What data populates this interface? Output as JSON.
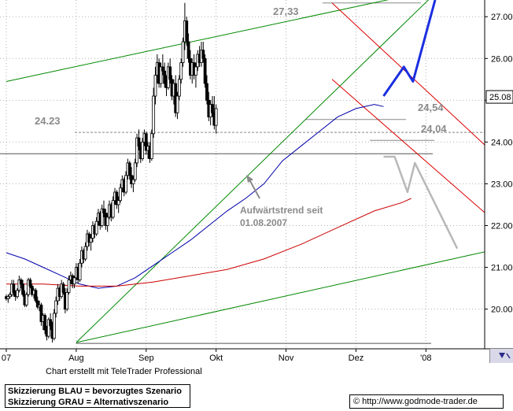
{
  "chart_data": {
    "type": "candlestick",
    "title": "",
    "xlabel": "",
    "ylabel": "",
    "ylim": [
      19.05,
      27.4
    ],
    "yticks": [
      "20.00",
      "21.00",
      "22.00",
      "23.00",
      "24.00",
      "25.00",
      "26.00",
      "27.00"
    ],
    "x_labels": [
      {
        "label": "07",
        "index": 0
      },
      {
        "label": "Aug",
        "index": 38
      },
      {
        "label": "Sep",
        "index": 76
      },
      {
        "label": "Okt",
        "index": 114
      },
      {
        "label": "Nov",
        "index": 152
      },
      {
        "label": "Dez",
        "index": 190
      },
      {
        "label": "'08",
        "index": 228
      }
    ],
    "current_price_label": "25.08",
    "current_price": 25.08,
    "levels": [
      {
        "label": "27,33",
        "value": 27.33
      },
      {
        "label": "24,54",
        "value": 24.54
      },
      {
        "label": "24.23",
        "value": 24.23
      },
      {
        "label": "24,04",
        "value": 24.04
      }
    ],
    "annotation": {
      "line1": "Aufwärtstrend seit",
      "line2": "01.08.2007"
    },
    "moving_averages": [
      {
        "color": "#0000aa",
        "points": [
          [
            0,
            21.35
          ],
          [
            10,
            21.2
          ],
          [
            20,
            21.0
          ],
          [
            30,
            20.8
          ],
          [
            40,
            20.6
          ],
          [
            50,
            20.5
          ],
          [
            60,
            20.55
          ],
          [
            70,
            20.75
          ],
          [
            80,
            21.05
          ],
          [
            90,
            21.35
          ],
          [
            100,
            21.65
          ],
          [
            110,
            22.0
          ],
          [
            120,
            22.35
          ],
          [
            130,
            22.65
          ],
          [
            140,
            23.0
          ],
          [
            150,
            23.55
          ],
          [
            160,
            23.9
          ],
          [
            170,
            24.25
          ],
          [
            180,
            24.6
          ],
          [
            190,
            24.8
          ],
          [
            200,
            24.9
          ],
          [
            205,
            24.85
          ]
        ]
      },
      {
        "color": "#cc0000",
        "points": [
          [
            0,
            20.6
          ],
          [
            20,
            20.6
          ],
          [
            40,
            20.55
          ],
          [
            60,
            20.55
          ],
          [
            80,
            20.65
          ],
          [
            100,
            20.8
          ],
          [
            120,
            20.95
          ],
          [
            140,
            21.2
          ],
          [
            160,
            21.55
          ],
          [
            180,
            21.95
          ],
          [
            200,
            22.35
          ],
          [
            215,
            22.55
          ],
          [
            220,
            22.65
          ]
        ]
      }
    ],
    "trend_lines": [
      {
        "color": "#008800",
        "points": [
          [
            0,
            25.45
          ],
          [
            210,
            27.43
          ]
        ]
      },
      {
        "color": "#008800",
        "points": [
          [
            38,
            19.2
          ],
          [
            230,
            27.43
          ]
        ]
      },
      {
        "color": "#008800",
        "points": [
          [
            38,
            19.2
          ],
          [
            268,
            21.45
          ]
        ]
      },
      {
        "color": "#dd0000",
        "points": [
          [
            177,
            27.33
          ],
          [
            268,
            23.6
          ]
        ]
      },
      {
        "color": "#dd0000",
        "points": [
          [
            177,
            25.5
          ],
          [
            268,
            22.0
          ]
        ]
      }
    ],
    "scenarios": [
      {
        "name": "BLAU",
        "color": "#1a2ee0",
        "points": [
          [
            205,
            25.1
          ],
          [
            216,
            25.8
          ],
          [
            221,
            25.45
          ],
          [
            233,
            27.4
          ]
        ]
      },
      {
        "name": "GRAU",
        "color": "#b8b8b8",
        "points": [
          [
            205,
            23.65
          ],
          [
            211,
            23.65
          ],
          [
            218,
            22.8
          ],
          [
            222,
            23.5
          ],
          [
            245,
            21.45
          ]
        ]
      }
    ],
    "candles": [
      [
        20.3,
        20.35,
        20.2,
        20.25
      ],
      [
        20.25,
        20.35,
        20.15,
        20.3
      ],
      [
        20.3,
        20.4,
        20.25,
        20.35
      ],
      [
        20.35,
        20.7,
        20.3,
        20.6
      ],
      [
        20.6,
        20.7,
        20.3,
        20.4
      ],
      [
        20.4,
        20.45,
        20.2,
        20.3
      ],
      [
        20.3,
        20.5,
        20.25,
        20.45
      ],
      [
        20.45,
        20.8,
        20.4,
        20.7
      ],
      [
        20.7,
        20.75,
        20.5,
        20.6
      ],
      [
        20.6,
        20.7,
        20.3,
        20.35
      ],
      [
        20.35,
        20.45,
        20.05,
        20.1
      ],
      [
        20.1,
        20.4,
        20.05,
        20.35
      ],
      [
        20.35,
        20.75,
        20.3,
        20.7
      ],
      [
        20.7,
        20.75,
        20.5,
        20.55
      ],
      [
        20.55,
        20.6,
        20.3,
        20.35
      ],
      [
        20.35,
        20.5,
        20.25,
        20.45
      ],
      [
        20.45,
        20.5,
        20.15,
        20.2
      ],
      [
        20.2,
        20.3,
        20.0,
        20.05
      ],
      [
        20.05,
        20.2,
        19.95,
        20.1
      ],
      [
        20.1,
        20.15,
        19.6,
        19.7
      ],
      [
        19.7,
        19.9,
        19.5,
        19.85
      ],
      [
        19.85,
        19.9,
        19.4,
        19.5
      ],
      [
        19.5,
        19.6,
        19.25,
        19.35
      ],
      [
        19.35,
        19.8,
        19.3,
        19.75
      ],
      [
        19.75,
        19.9,
        19.5,
        19.6
      ],
      [
        19.6,
        19.7,
        19.2,
        19.3
      ],
      [
        19.3,
        20.0,
        19.25,
        19.9
      ],
      [
        19.9,
        20.3,
        19.8,
        20.2
      ],
      [
        20.2,
        20.6,
        20.1,
        20.5
      ],
      [
        20.5,
        20.55,
        20.2,
        20.3
      ],
      [
        20.3,
        20.7,
        20.25,
        20.6
      ],
      [
        20.6,
        20.65,
        20.35,
        20.4
      ],
      [
        20.4,
        20.5,
        19.9,
        20.0
      ],
      [
        20.0,
        20.5,
        19.95,
        20.4
      ],
      [
        20.4,
        20.8,
        20.35,
        20.7
      ],
      [
        20.7,
        20.9,
        20.6,
        20.8
      ],
      [
        20.8,
        20.85,
        20.5,
        20.6
      ],
      [
        20.6,
        20.8,
        20.5,
        20.75
      ],
      [
        20.75,
        21.1,
        20.7,
        21.0
      ],
      [
        21.0,
        21.1,
        20.6,
        20.7
      ],
      [
        20.7,
        21.2,
        20.65,
        21.1
      ],
      [
        21.1,
        21.5,
        21.0,
        21.4
      ],
      [
        21.4,
        21.45,
        21.1,
        21.2
      ],
      [
        21.2,
        21.6,
        21.15,
        21.5
      ],
      [
        21.5,
        21.9,
        21.4,
        21.8
      ],
      [
        21.8,
        21.85,
        21.5,
        21.6
      ],
      [
        21.6,
        21.8,
        21.4,
        21.7
      ],
      [
        21.7,
        22.1,
        21.6,
        22.0
      ],
      [
        22.0,
        22.05,
        21.7,
        21.8
      ],
      [
        21.8,
        22.2,
        21.75,
        22.1
      ],
      [
        22.1,
        22.4,
        22.0,
        22.3
      ],
      [
        22.3,
        22.35,
        21.9,
        22.0
      ],
      [
        22.0,
        22.5,
        21.95,
        22.4
      ],
      [
        22.4,
        22.6,
        22.2,
        22.3
      ],
      [
        22.3,
        22.4,
        21.9,
        22.0
      ],
      [
        22.0,
        22.3,
        21.85,
        22.2
      ],
      [
        22.2,
        22.6,
        22.15,
        22.5
      ],
      [
        22.5,
        22.55,
        22.1,
        22.2
      ],
      [
        22.2,
        22.7,
        22.15,
        22.6
      ],
      [
        22.6,
        22.9,
        22.5,
        22.8
      ],
      [
        22.8,
        22.85,
        22.4,
        22.5
      ],
      [
        22.5,
        22.7,
        22.3,
        22.6
      ],
      [
        22.6,
        23.0,
        22.55,
        22.9
      ],
      [
        22.9,
        23.2,
        22.8,
        23.1
      ],
      [
        23.1,
        23.15,
        22.7,
        22.8
      ],
      [
        22.8,
        23.3,
        22.75,
        23.2
      ],
      [
        23.2,
        23.6,
        23.1,
        23.5
      ],
      [
        23.5,
        23.55,
        23.1,
        23.2
      ],
      [
        23.2,
        23.4,
        22.9,
        23.0
      ],
      [
        23.0,
        23.2,
        22.8,
        23.1
      ],
      [
        23.1,
        23.6,
        23.05,
        23.5
      ],
      [
        23.5,
        24.2,
        23.4,
        24.1
      ],
      [
        24.1,
        24.3,
        23.8,
        23.9
      ],
      [
        23.9,
        24.0,
        23.5,
        23.6
      ],
      [
        23.6,
        24.1,
        23.55,
        24.0
      ],
      [
        24.0,
        24.3,
        23.9,
        24.2
      ],
      [
        24.2,
        24.25,
        23.7,
        23.8
      ],
      [
        23.8,
        24.0,
        23.6,
        23.9
      ],
      [
        23.9,
        24.0,
        23.5,
        23.6
      ],
      [
        23.6,
        24.3,
        23.55,
        24.2
      ],
      [
        24.2,
        25.3,
        24.1,
        25.1
      ],
      [
        25.1,
        25.8,
        24.9,
        25.6
      ],
      [
        25.6,
        26.1,
        25.4,
        25.9
      ],
      [
        25.9,
        26.0,
        25.3,
        25.4
      ],
      [
        25.4,
        25.9,
        25.3,
        25.8
      ],
      [
        25.8,
        26.1,
        25.6,
        25.7
      ],
      [
        25.7,
        25.9,
        25.3,
        25.4
      ],
      [
        25.4,
        25.6,
        25.1,
        25.3
      ],
      [
        25.3,
        25.9,
        25.25,
        25.8
      ],
      [
        25.8,
        26.0,
        25.4,
        25.5
      ],
      [
        25.5,
        25.6,
        25.0,
        25.1
      ],
      [
        25.1,
        25.5,
        24.9,
        25.4
      ],
      [
        25.4,
        25.6,
        24.6,
        24.7
      ],
      [
        24.7,
        25.2,
        24.55,
        25.1
      ],
      [
        25.1,
        25.6,
        25.0,
        25.5
      ],
      [
        25.5,
        26.0,
        25.4,
        25.9
      ],
      [
        25.9,
        26.5,
        25.8,
        26.4
      ],
      [
        26.4,
        27.33,
        26.2,
        26.9
      ],
      [
        26.9,
        27.0,
        26.3,
        26.4
      ],
      [
        26.4,
        26.6,
        25.9,
        26.0
      ],
      [
        26.0,
        26.2,
        25.5,
        25.6
      ],
      [
        25.6,
        26.0,
        25.4,
        25.9
      ],
      [
        25.9,
        26.1,
        25.5,
        25.6
      ],
      [
        25.6,
        25.9,
        25.3,
        25.8
      ],
      [
        25.8,
        26.2,
        25.7,
        26.1
      ],
      [
        26.1,
        26.3,
        25.8,
        25.9
      ],
      [
        25.9,
        26.4,
        25.8,
        26.2
      ],
      [
        26.2,
        26.4,
        25.9,
        26.0
      ],
      [
        26.0,
        26.1,
        25.3,
        25.4
      ],
      [
        25.4,
        25.6,
        24.9,
        25.0
      ],
      [
        25.0,
        25.2,
        24.5,
        24.6
      ],
      [
        24.6,
        25.0,
        24.4,
        24.9
      ],
      [
        24.9,
        25.1,
        24.6,
        24.7
      ],
      [
        24.7,
        25.1,
        24.3,
        24.4
      ],
      [
        24.4,
        24.9,
        24.2,
        24.8
      ]
    ]
  },
  "footer": {
    "credit": "Chart erstellt mit TeleTrader Professional",
    "legend_line1": "Skizzierung BLAU = bevorzugtes Szenario",
    "legend_line2": "Skizzierung GRAU = Alternativszenario",
    "url": "© http://www.godmode-trader.de"
  }
}
